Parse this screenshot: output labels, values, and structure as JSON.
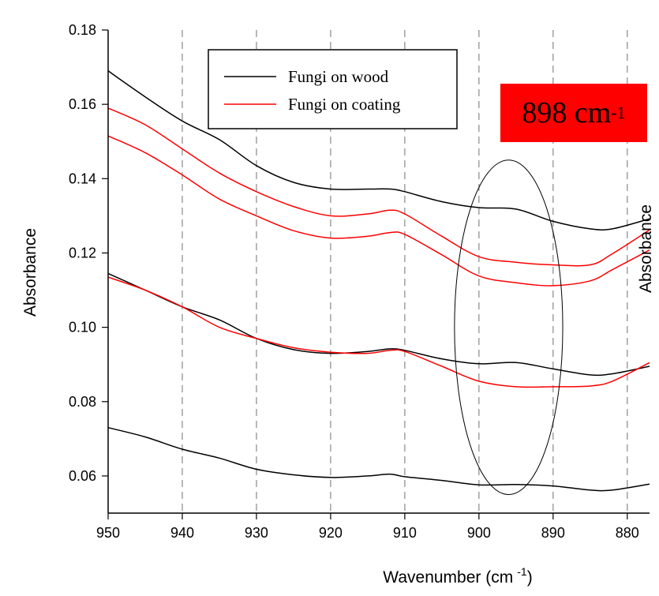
{
  "chart_data": {
    "type": "line",
    "title": "",
    "xlabel": "Wavenumber (cm",
    "xlabel_sup": "-1",
    "xlabel_close": ")",
    "ylabel": "Absorbance",
    "ylabel_right": "Absorbance",
    "x_reversed": true,
    "xlim": [
      950,
      877
    ],
    "ylim": [
      0.05,
      0.18
    ],
    "x_ticks": [
      950,
      940,
      930,
      920,
      910,
      900,
      890,
      880
    ],
    "x_tick_labels": [
      "950",
      "940",
      "930",
      "920",
      "910",
      "900",
      "890",
      "880"
    ],
    "y_ticks": [
      0.06,
      0.08,
      0.1,
      0.12,
      0.14,
      0.16,
      0.18
    ],
    "y_tick_labels": [
      "0.06",
      "0.08",
      "0.10",
      "0.12",
      "0.14",
      "0.16",
      "0.18"
    ],
    "vertical_gridlines": [
      940,
      930,
      920,
      910,
      900,
      890,
      880
    ],
    "grid_style": "dashed-vertical",
    "legend_position": "top-center",
    "legend": [
      {
        "label": "Fungi on wood",
        "color": "#000000"
      },
      {
        "label": "Fungi on coating",
        "color": "#ff0000"
      }
    ],
    "badge": {
      "text": "898 cm",
      "sup": "-1",
      "color": "#ff0000"
    },
    "highlight_ellipse": {
      "center_x": 896,
      "center_y": 0.1,
      "half_width_x": 7.3,
      "half_height_y": 0.045
    },
    "series": [
      {
        "group": "Fungi on wood",
        "color": "#000000",
        "x": [
          950,
          945,
          940,
          935,
          930,
          925,
          920,
          915,
          912,
          910,
          905,
          900,
          895,
          890,
          885,
          882,
          877
        ],
        "y": [
          0.169,
          0.162,
          0.1555,
          0.1505,
          0.1435,
          0.139,
          0.1372,
          0.1372,
          0.1372,
          0.1365,
          0.1338,
          0.1322,
          0.1318,
          0.1285,
          0.1265,
          0.1265,
          0.1292
        ]
      },
      {
        "group": "Fungi on coating",
        "color": "#ff0000",
        "x": [
          950,
          945,
          940,
          935,
          930,
          925,
          920,
          915,
          912,
          910,
          905,
          900,
          895,
          890,
          885,
          882,
          877
        ],
        "y": [
          0.159,
          0.1545,
          0.148,
          0.1415,
          0.1365,
          0.1325,
          0.13,
          0.1305,
          0.1315,
          0.1305,
          0.1245,
          0.119,
          0.1175,
          0.1168,
          0.1168,
          0.1198,
          0.1262
        ]
      },
      {
        "group": "Fungi on coating",
        "color": "#ff0000",
        "x": [
          950,
          945,
          940,
          935,
          930,
          925,
          920,
          915,
          912,
          910,
          905,
          900,
          895,
          890,
          885,
          882,
          877
        ],
        "y": [
          0.1515,
          0.147,
          0.141,
          0.1345,
          0.13,
          0.126,
          0.124,
          0.1245,
          0.1255,
          0.125,
          0.1195,
          0.1138,
          0.112,
          0.1112,
          0.1125,
          0.1155,
          0.1208
        ]
      },
      {
        "group": "Fungi on wood",
        "color": "#000000",
        "x": [
          950,
          945,
          940,
          935,
          930,
          925,
          920,
          915,
          912,
          910,
          905,
          900,
          895,
          890,
          885,
          882,
          877
        ],
        "y": [
          0.1145,
          0.11,
          0.1055,
          0.102,
          0.097,
          0.094,
          0.093,
          0.0935,
          0.0942,
          0.0938,
          0.0915,
          0.0902,
          0.0905,
          0.0888,
          0.0872,
          0.0875,
          0.0895
        ]
      },
      {
        "group": "Fungi on coating",
        "color": "#ff0000",
        "x": [
          950,
          945,
          940,
          935,
          930,
          925,
          920,
          915,
          912,
          910,
          905,
          900,
          895,
          890,
          885,
          882,
          877
        ],
        "y": [
          0.1135,
          0.11,
          0.1055,
          0.1,
          0.097,
          0.0945,
          0.0933,
          0.093,
          0.0938,
          0.0935,
          0.0895,
          0.0855,
          0.084,
          0.084,
          0.0842,
          0.0855,
          0.0905
        ]
      },
      {
        "group": "Fungi on wood",
        "color": "#000000",
        "x": [
          950,
          945,
          940,
          935,
          930,
          925,
          920,
          915,
          912,
          910,
          905,
          900,
          895,
          890,
          885,
          882,
          877
        ],
        "y": [
          0.073,
          0.0705,
          0.0672,
          0.0648,
          0.0618,
          0.0603,
          0.0596,
          0.06,
          0.0605,
          0.0598,
          0.0588,
          0.0576,
          0.0577,
          0.0573,
          0.0562,
          0.0562,
          0.0578
        ]
      }
    ]
  }
}
